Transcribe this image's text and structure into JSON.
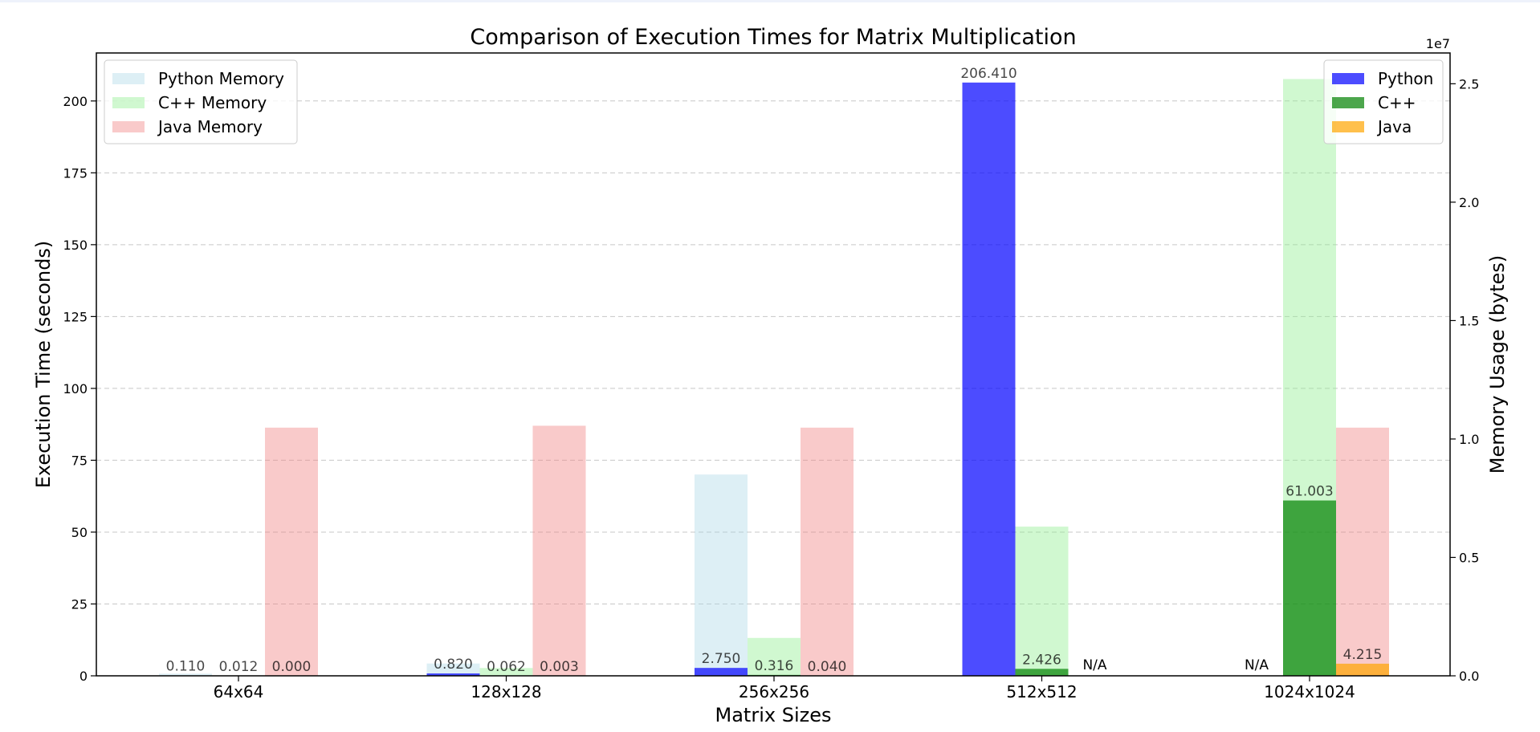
{
  "chart_data": {
    "type": "bar",
    "title": "Comparison of Execution Times for Matrix Multiplication",
    "xlabel": "Matrix Sizes",
    "ylabel": "Execution Time (seconds)",
    "y2label": "Memory Usage (bytes)",
    "y2_offset_text": "1e7",
    "categories": [
      "64x64",
      "128x128",
      "256x256",
      "512x512",
      "1024x1024"
    ],
    "ylim": [
      0,
      216.7
    ],
    "y2lim": [
      0,
      26300000
    ],
    "yticks": [
      0,
      25,
      50,
      75,
      100,
      125,
      150,
      175,
      200
    ],
    "y2ticks": [
      0,
      5000000,
      10000000,
      15000000,
      20000000,
      25000000
    ],
    "y2tick_labels": [
      "0.0",
      "0.5",
      "1.0",
      "1.5",
      "2.0",
      "2.5"
    ],
    "grid": "horizontal dashed",
    "time_series": [
      {
        "name": "Python",
        "color": "#0000ff",
        "values": [
          0.11,
          0.82,
          2.75,
          206.41,
          null
        ],
        "labels": [
          "0.110",
          "0.820",
          "2.750",
          "206.410",
          "N/A"
        ]
      },
      {
        "name": "C++",
        "color": "#008000",
        "values": [
          0.012,
          0.062,
          0.316,
          2.426,
          61.003
        ],
        "labels": [
          "0.012",
          "0.062",
          "0.316",
          "2.426",
          "61.003"
        ]
      },
      {
        "name": "Java",
        "color": "#ffa500",
        "values": [
          0.0,
          0.003,
          0.04,
          null,
          4.215
        ],
        "labels": [
          "0.000",
          "0.003",
          "0.040",
          "N/A",
          "4.215"
        ]
      }
    ],
    "memory_series": [
      {
        "name": "Python Memory",
        "color": "#add8e6",
        "values": [
          90000,
          520000,
          8500000,
          null,
          null
        ]
      },
      {
        "name": "C++ Memory",
        "color": "#90ee90",
        "values": [
          5000,
          330000,
          1600000,
          6300000,
          25200000
        ]
      },
      {
        "name": "Java Memory",
        "color": "#f08080",
        "values": [
          10480000,
          10560000,
          10480000,
          null,
          10480000
        ]
      }
    ],
    "legend_memory_position": "upper-left",
    "legend_time_position": "upper-right"
  }
}
